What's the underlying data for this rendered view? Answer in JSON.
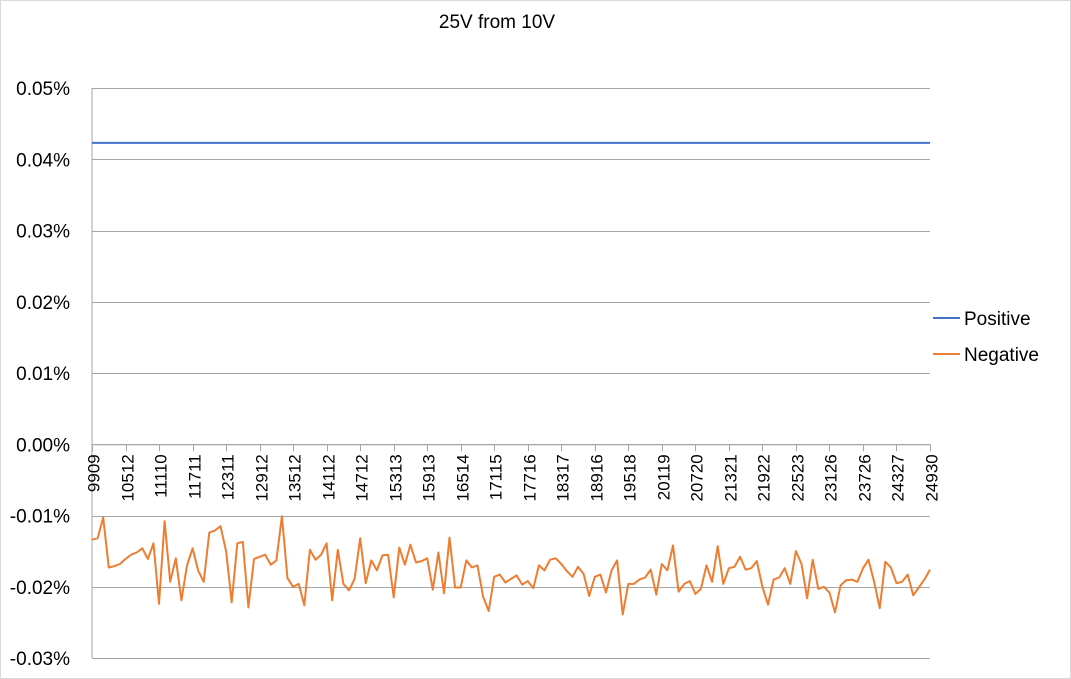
{
  "chart_data": {
    "type": "line",
    "title": "25V from 10V",
    "xlabel": "",
    "ylabel": "",
    "ylim": [
      -0.0003,
      0.0005
    ],
    "yticks": [
      0.0005,
      0.0004,
      0.0003,
      0.0002,
      0.0001,
      0.0,
      -0.0001,
      -0.0002,
      -0.0003
    ],
    "ytick_labels": [
      "0.05%",
      "0.04%",
      "0.03%",
      "0.02%",
      "0.01%",
      "0.00%",
      "-0.01%",
      "-0.02%",
      "-0.03%"
    ],
    "grid": true,
    "legend_position": "right",
    "x_range": [
      9909,
      24930
    ],
    "xtick_labels": [
      "9909",
      "10512",
      "11110",
      "11711",
      "12311",
      "12912",
      "13512",
      "14112",
      "14712",
      "15313",
      "15913",
      "16514",
      "17115",
      "17716",
      "18317",
      "18916",
      "19518",
      "20119",
      "20720",
      "21321",
      "21922",
      "22523",
      "23126",
      "23726",
      "24327",
      "24930"
    ],
    "series": [
      {
        "name": "Positive",
        "color": "#4472c4",
        "values": [
          0.000423,
          0.000423
        ]
      },
      {
        "name": "Negative",
        "color": "#ed7d31",
        "values": [
          -0.000134,
          -0.000132,
          -0.000103,
          -0.000173,
          -0.000171,
          -0.000168,
          -0.000161,
          -0.000155,
          -0.000152,
          -0.000146,
          -0.000161,
          -0.000139,
          -0.000224,
          -0.000108,
          -0.000193,
          -0.00016,
          -0.000219,
          -0.00017,
          -0.000146,
          -0.000177,
          -0.000193,
          -0.000124,
          -0.000121,
          -0.000115,
          -0.00015,
          -0.000222,
          -0.000139,
          -0.000137,
          -0.000229,
          -0.000161,
          -0.000158,
          -0.000155,
          -0.000169,
          -0.000163,
          -0.000101,
          -0.000188,
          -0.0002,
          -0.000196,
          -0.000226,
          -0.000148,
          -0.000162,
          -0.000155,
          -0.000139,
          -0.000219,
          -0.000148,
          -0.000196,
          -0.000205,
          -0.000189,
          -0.000132,
          -0.000195,
          -0.000163,
          -0.000177,
          -0.000156,
          -0.000155,
          -0.000215,
          -0.000145,
          -0.000169,
          -0.000141,
          -0.000166,
          -0.000164,
          -0.00016,
          -0.000204,
          -0.000152,
          -0.000209,
          -0.000131,
          -0.000201,
          -0.000201,
          -0.000163,
          -0.000173,
          -0.00017,
          -0.000214,
          -0.000234,
          -0.000186,
          -0.000183,
          -0.000194,
          -0.000189,
          -0.000184,
          -0.000197,
          -0.000192,
          -0.000202,
          -0.00017,
          -0.000177,
          -0.000162,
          -0.00016,
          -0.000168,
          -0.000178,
          -0.000186,
          -0.000172,
          -0.000182,
          -0.000213,
          -0.000186,
          -0.000183,
          -0.000208,
          -0.000177,
          -0.000163,
          -0.000239,
          -0.000196,
          -0.000196,
          -0.00019,
          -0.000187,
          -0.000176,
          -0.000211,
          -0.000168,
          -0.000177,
          -0.000142,
          -0.000207,
          -0.000196,
          -0.000192,
          -0.00021,
          -0.000203,
          -0.00017,
          -0.000193,
          -0.000143,
          -0.000196,
          -0.000174,
          -0.000172,
          -0.000158,
          -0.000176,
          -0.000174,
          -0.000164,
          -0.0002,
          -0.000225,
          -0.00019,
          -0.000187,
          -0.000174,
          -0.000196,
          -0.00015,
          -0.000168,
          -0.000216,
          -0.000162,
          -0.000203,
          -0.0002,
          -0.000208,
          -0.000236,
          -0.000198,
          -0.000191,
          -0.00019,
          -0.000193,
          -0.000174,
          -0.000162,
          -0.000193,
          -0.00023,
          -0.000165,
          -0.000173,
          -0.000195,
          -0.000193,
          -0.000183,
          -0.000212,
          -0.000201,
          -0.00019,
          -0.000176
        ]
      }
    ]
  }
}
